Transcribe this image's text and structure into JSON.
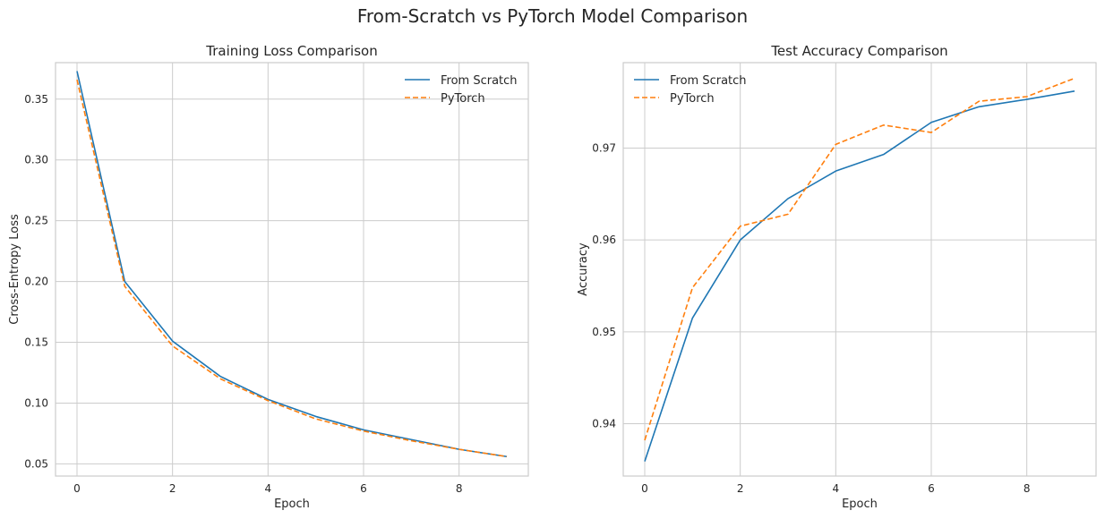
{
  "figure": {
    "suptitle": "From-Scratch vs PyTorch Model Comparison"
  },
  "chart_data": [
    {
      "type": "line",
      "title": "Training Loss Comparison",
      "xlabel": "Epoch",
      "ylabel": "Cross-Entropy Loss",
      "x": [
        0,
        1,
        2,
        3,
        4,
        5,
        6,
        7,
        8,
        9
      ],
      "xlim": [
        -0.45,
        9.45
      ],
      "ylim": [
        0.04,
        0.38
      ],
      "xticks": [
        0,
        2,
        4,
        6,
        8
      ],
      "yticks": [
        0.05,
        0.1,
        0.15,
        0.2,
        0.25,
        0.3,
        0.35
      ],
      "ytick_labels": [
        "0.05",
        "0.10",
        "0.15",
        "0.20",
        "0.25",
        "0.30",
        "0.35"
      ],
      "legend_position": "top-right",
      "grid": true,
      "series": [
        {
          "name": "From Scratch",
          "color": "#1f77b4",
          "style": "solid",
          "values": [
            0.373,
            0.2,
            0.151,
            0.122,
            0.103,
            0.089,
            0.078,
            0.07,
            0.062,
            0.056
          ]
        },
        {
          "name": "PyTorch",
          "color": "#ff7f0e",
          "style": "dashed",
          "values": [
            0.366,
            0.196,
            0.147,
            0.12,
            0.102,
            0.087,
            0.077,
            0.069,
            0.062,
            0.056
          ]
        }
      ]
    },
    {
      "type": "line",
      "title": "Test Accuracy Comparison",
      "xlabel": "Epoch",
      "ylabel": "Accuracy",
      "x": [
        0,
        1,
        2,
        3,
        4,
        5,
        6,
        7,
        8,
        9
      ],
      "xlim": [
        -0.45,
        9.45
      ],
      "ylim": [
        0.9343,
        0.9793
      ],
      "xticks": [
        0,
        2,
        4,
        6,
        8
      ],
      "yticks": [
        0.94,
        0.95,
        0.96,
        0.97
      ],
      "ytick_labels": [
        "0.94",
        "0.95",
        "0.96",
        "0.97"
      ],
      "legend_position": "top-left",
      "grid": true,
      "series": [
        {
          "name": "From Scratch",
          "color": "#1f77b4",
          "style": "solid",
          "values": [
            0.9359,
            0.9515,
            0.96,
            0.9645,
            0.9675,
            0.9693,
            0.9728,
            0.9745,
            0.9753,
            0.9762
          ]
        },
        {
          "name": "PyTorch",
          "color": "#ff7f0e",
          "style": "dashed",
          "values": [
            0.9382,
            0.9548,
            0.9615,
            0.9628,
            0.9704,
            0.9725,
            0.9717,
            0.9751,
            0.9756,
            0.9776
          ]
        }
      ]
    }
  ]
}
